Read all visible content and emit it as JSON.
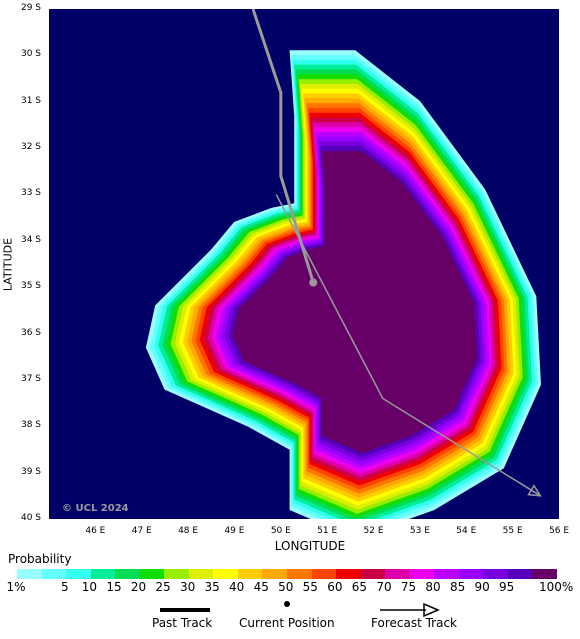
{
  "map": {
    "y_ticks": [
      "29 S",
      "30 S",
      "31 S",
      "32 S",
      "33 S",
      "34 S",
      "35 S",
      "36 S",
      "37 S",
      "38 S",
      "39 S",
      "40 S"
    ],
    "x_ticks": [
      "46 E",
      "47 E",
      "48 E",
      "49 E",
      "50 E",
      "51 E",
      "52 E",
      "53 E",
      "54 E",
      "55 E",
      "56 E"
    ],
    "xlabel": "LONGITUDE",
    "ylabel": "LATITUDE",
    "copyright": "© UCL 2024",
    "lon_range": [
      45,
      56
    ],
    "lat_range": [
      -29,
      -40
    ],
    "ocean_color": "#000066",
    "past_track": [
      [
        49.4,
        -29.0
      ],
      [
        50.0,
        -30.8
      ],
      [
        50.0,
        -32.6
      ],
      [
        50.7,
        -34.9
      ]
    ],
    "current_position": [
      50.7,
      -34.9
    ],
    "forecast_track": [
      [
        49.9,
        -33.0
      ],
      [
        52.2,
        -37.4
      ],
      [
        55.6,
        -39.5
      ]
    ]
  },
  "legend": {
    "title": "Probability",
    "colors": [
      "#99ffff",
      "#66ffff",
      "#33ffee",
      "#00ee99",
      "#00dd55",
      "#11dd00",
      "#99ee00",
      "#ddee00",
      "#ffff00",
      "#ffcc00",
      "#ffaa00",
      "#ff7700",
      "#ff4400",
      "#ee0000",
      "#cc0044",
      "#dd00aa",
      "#ee00ee",
      "#bb00ff",
      "#9900ff",
      "#7700dd",
      "#5500bb",
      "#660066"
    ],
    "labels": [
      "1%",
      "5",
      "10",
      "15",
      "20",
      "25",
      "30",
      "35",
      "40",
      "45",
      "50",
      "55",
      "60",
      "65",
      "70",
      "75",
      "80",
      "85",
      "90",
      "95",
      "100%"
    ],
    "past_track_label": "Past Track",
    "current_position_label": "Current Position",
    "forecast_track_label": "Forecast Track"
  }
}
